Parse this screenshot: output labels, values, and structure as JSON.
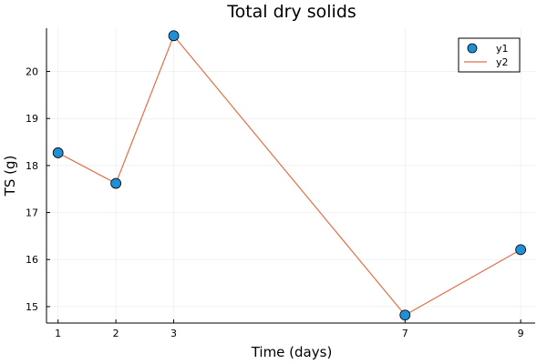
{
  "chart_data": {
    "type": "scatter",
    "title": "Total dry solids",
    "xlabel": "Time (days)",
    "ylabel": "TS (g)",
    "x": [
      1,
      2,
      3,
      7,
      9
    ],
    "xticks": [
      "1",
      "2",
      "3",
      "7",
      "9"
    ],
    "yticks": [
      "15",
      "16",
      "17",
      "18",
      "19",
      "20"
    ],
    "xlim": [
      0.8,
      9.25
    ],
    "ylim": [
      14.65,
      20.92
    ],
    "grid": true,
    "legend_position": "top-right",
    "series": [
      {
        "name": "y1",
        "kind": "scatter",
        "color": "#1f8fd6",
        "values": [
          18.27,
          17.62,
          20.76,
          14.82,
          16.21
        ]
      },
      {
        "name": "y2",
        "kind": "line",
        "color": "#e26f46",
        "values": [
          18.27,
          17.62,
          20.76,
          14.82,
          16.21
        ]
      }
    ]
  }
}
